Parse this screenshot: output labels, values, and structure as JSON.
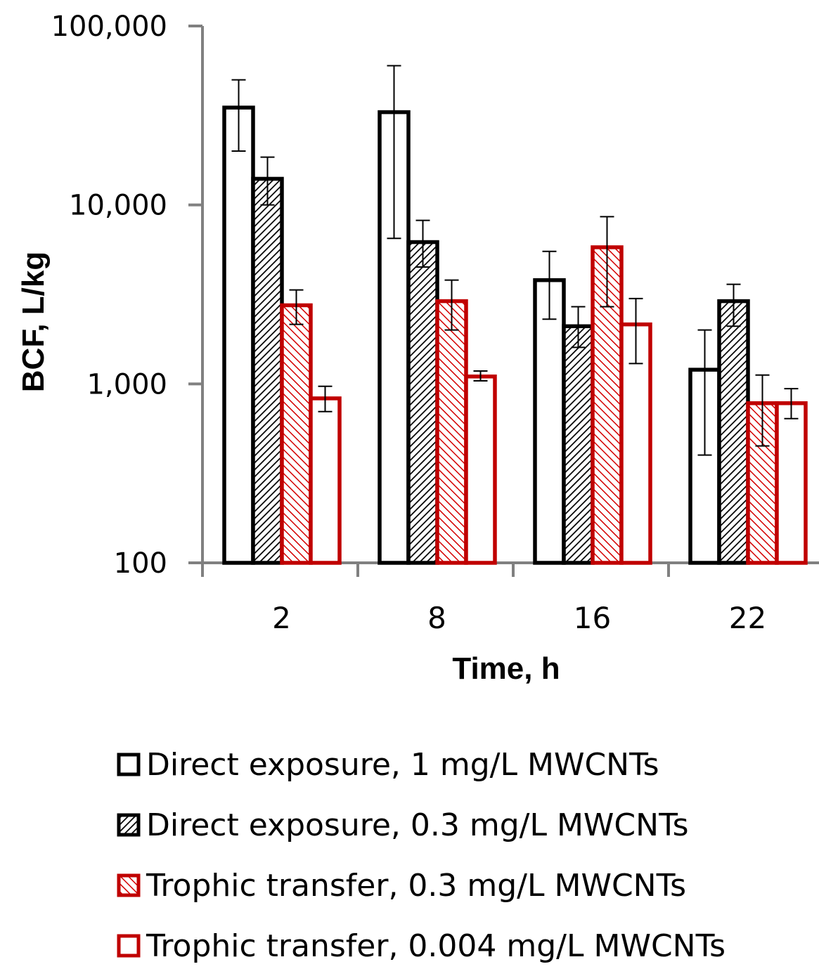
{
  "chart_data": {
    "type": "bar",
    "categories": [
      "2",
      "8",
      "16",
      "22"
    ],
    "xlabel": "Time, h",
    "ylabel": "BCF, L/kg",
    "yscale": "log",
    "ylim": [
      100,
      100000
    ],
    "yticks": [
      100,
      1000,
      10000,
      100000
    ],
    "ytick_labels": [
      "100",
      "1,000",
      "10,000",
      "100,000"
    ],
    "grid": false,
    "legend_position": "bottom",
    "series": [
      {
        "name": "Direct exposure, 1 mg/L MWCNTs",
        "values": [
          35000,
          33000,
          3800,
          1200
        ],
        "error_low": [
          20000,
          6500,
          2300,
          400
        ],
        "error_high": [
          50000,
          60000,
          5500,
          2000
        ],
        "color": "#000000",
        "fill": "none"
      },
      {
        "name": "Direct exposure, 0.3 mg/L MWCNTs",
        "values": [
          14000,
          6200,
          2100,
          2900
        ],
        "error_low": [
          10000,
          4500,
          1600,
          2100
        ],
        "error_high": [
          18500,
          8200,
          2700,
          3600
        ],
        "color": "#000000",
        "fill": "hatched"
      },
      {
        "name": "Trophic transfer, 0.3 mg/L MWCNTs",
        "values": [
          2750,
          2900,
          5800,
          780
        ],
        "error_low": [
          2150,
          2000,
          2700,
          450
        ],
        "error_high": [
          3350,
          3800,
          8600,
          1120
        ],
        "color": "#c00000",
        "fill": "hatched"
      },
      {
        "name": "Trophic transfer, 0.004 mg/L MWCNTs",
        "values": [
          830,
          1100,
          2150,
          780
        ],
        "error_low": [
          700,
          1040,
          1300,
          640
        ],
        "error_high": [
          970,
          1180,
          3000,
          940
        ],
        "color": "#c00000",
        "fill": "none"
      }
    ]
  }
}
